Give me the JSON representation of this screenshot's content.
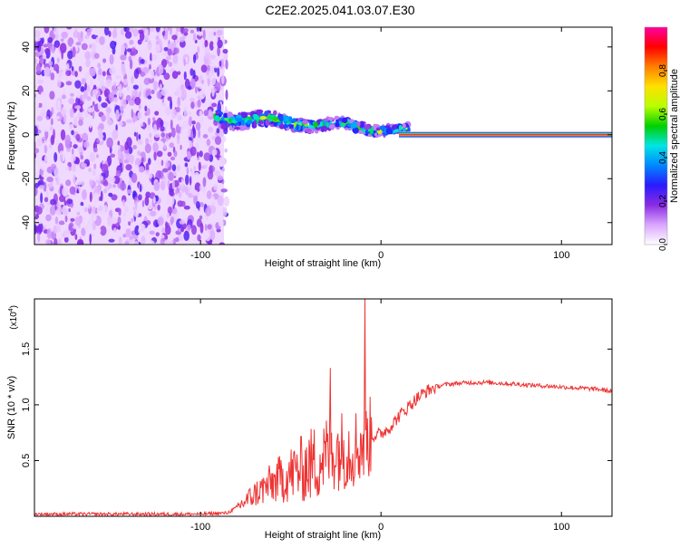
{
  "figure": {
    "title": "C2E2.2025.041.03.07.E30"
  },
  "chart_data": [
    {
      "type": "heatmap",
      "title": "C2E2.2025.041.03.07.E30",
      "xlabel": "Height of straight line (km)",
      "ylabel": "Frequency (Hz)",
      "xlim": [
        -192,
        128
      ],
      "ylim": [
        -50,
        49
      ],
      "x_ticks": [
        -100,
        0,
        100
      ],
      "x_tick_labels": [
        "-100",
        "0",
        "100"
      ],
      "y_ticks": [
        -40,
        -20,
        0,
        20,
        40
      ],
      "y_tick_labels": [
        "-40",
        "-20",
        "0",
        "20",
        "40"
      ],
      "colorbar": {
        "label": "Normalized spectral amplitude",
        "range": [
          0,
          1
        ],
        "ticks": [
          0.0,
          0.2,
          0.4,
          0.6,
          0.8
        ],
        "tick_labels": [
          "0.0",
          "0.2",
          "0.4",
          "0.6",
          "0.8"
        ],
        "colors": [
          "#ffffff",
          "#d9a6ff",
          "#8a2be2",
          "#2a1aff",
          "#0088ff",
          "#00e5e5",
          "#00d000",
          "#b8ff00",
          "#ffe000",
          "#ff8000",
          "#ff0000",
          "#ff00a0"
        ]
      },
      "regions": [
        {
          "name": "diffuse noise",
          "x_range": [
            -192,
            -87
          ],
          "freq_range": [
            -50,
            49
          ],
          "amplitude": 0.15
        },
        {
          "name": "wandering carrier",
          "x_range": [
            -92,
            15
          ],
          "center_freq_Hz": [
            8,
            2
          ],
          "amplitude": 0.45
        },
        {
          "name": "clean carrier",
          "x_range": [
            10,
            128
          ],
          "center_freq_Hz": 0,
          "amplitude": 1.0
        }
      ]
    },
    {
      "type": "line",
      "xlabel": "Height of straight line (km)",
      "ylabel": "SNR (10 * v/v)",
      "y_scale_label": "(x10",
      "y_scale_exp": "4",
      "xlim": [
        -192,
        128
      ],
      "ylim": [
        0,
        1.95
      ],
      "x_ticks": [
        -100,
        0,
        100
      ],
      "x_tick_labels": [
        "-100",
        "0",
        "100"
      ],
      "y_ticks": [
        0.5,
        1.0,
        1.5
      ],
      "y_tick_labels": [
        "0.5",
        "1.0",
        "1.5"
      ],
      "color": "#ee3333",
      "series": [
        {
          "name": "SNR",
          "x": [
            -192,
            -150,
            -100,
            -85,
            -78,
            -70,
            -60,
            -50,
            -40,
            -30,
            -25,
            -20,
            -15,
            -10,
            -7,
            -5,
            0,
            5,
            10,
            15,
            20,
            25,
            30,
            35,
            40,
            50,
            60,
            70,
            80,
            90,
            100,
            110,
            120,
            128
          ],
          "y": [
            0.02,
            0.02,
            0.02,
            0.03,
            0.1,
            0.2,
            0.3,
            0.38,
            0.45,
            0.55,
            0.6,
            0.6,
            0.62,
            0.65,
            0.7,
            0.72,
            0.74,
            0.8,
            0.9,
            0.98,
            1.06,
            1.12,
            1.16,
            1.18,
            1.19,
            1.2,
            1.2,
            1.19,
            1.18,
            1.17,
            1.16,
            1.15,
            1.14,
            1.12
          ]
        }
      ],
      "annotations": [
        {
          "x": -28,
          "y": 1.33,
          "label": ""
        },
        {
          "x": -9,
          "y": 1.95,
          "label": ""
        }
      ]
    }
  ]
}
